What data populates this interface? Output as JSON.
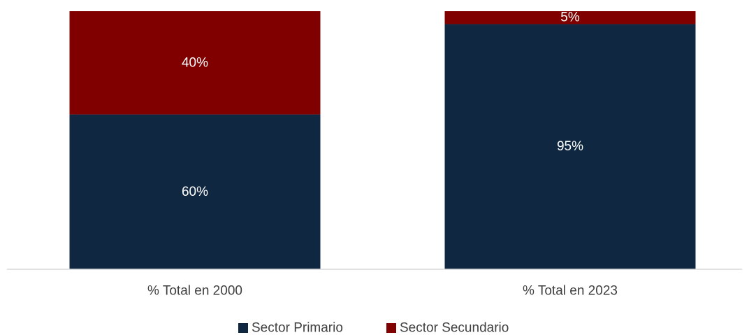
{
  "chart_data": {
    "type": "bar",
    "stacked": true,
    "categories": [
      "% Total en 2000",
      "% Total en 2023"
    ],
    "series": [
      {
        "name": "Sector Primario",
        "values": [
          60,
          95
        ],
        "labels": [
          "60%",
          "95%"
        ],
        "color": "#0F2741"
      },
      {
        "name": "Sector Secundario",
        "values": [
          40,
          5
        ],
        "labels": [
          "40%",
          "5%"
        ],
        "color": "#800000"
      }
    ],
    "ylim": [
      0,
      100
    ],
    "grid": false,
    "legend_position": "bottom",
    "axis_color": "#D9D9D9",
    "text_color": "#404040"
  }
}
